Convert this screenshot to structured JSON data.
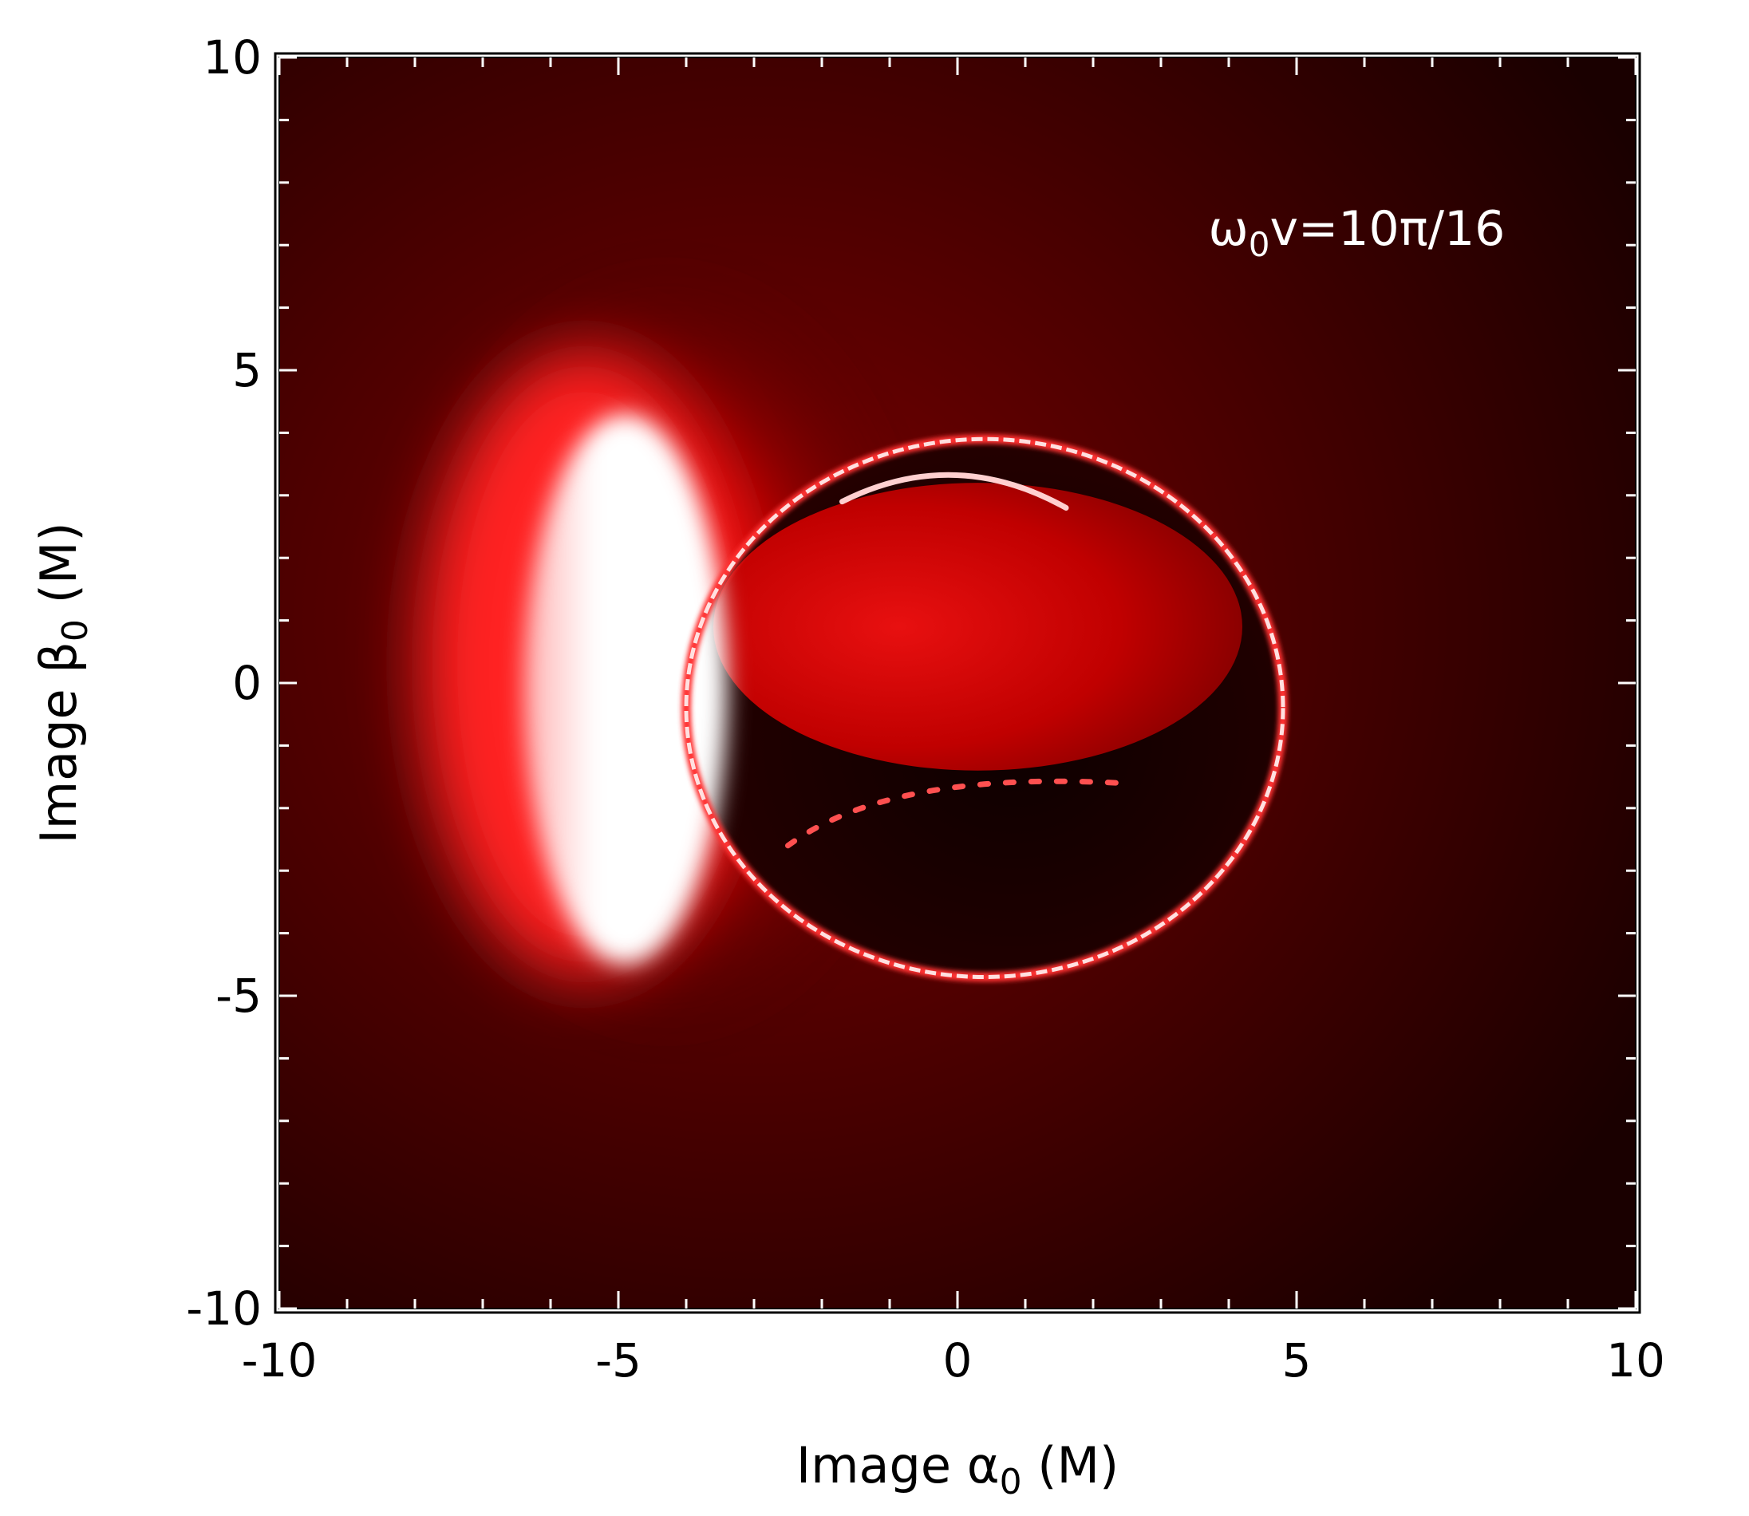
{
  "chart_data": {
    "type": "heatmap",
    "title": "",
    "xlabel": {
      "prefix": "Image ",
      "symbol": "α",
      "subscript": "0",
      "suffix": " (M)"
    },
    "ylabel": {
      "prefix": "Image ",
      "symbol": "β",
      "subscript": "0",
      "suffix": " (M)"
    },
    "xlim": [
      -10,
      10
    ],
    "ylim": [
      -10,
      10
    ],
    "xticks": [
      -10,
      -5,
      0,
      5,
      10
    ],
    "yticks": [
      -10,
      -5,
      0,
      5,
      10
    ],
    "xtick_labels": [
      "-10",
      "-5",
      "0",
      "5",
      "10"
    ],
    "ytick_labels": [
      "-10",
      "-5",
      "0",
      "5",
      "10"
    ],
    "minor_tick_step": 1,
    "grid": false,
    "colormap": [
      "#000000",
      "#ff0000",
      "#ffffff"
    ],
    "annotation": {
      "symbol": "ω",
      "subscript": "0",
      "text": "v=10π/16"
    },
    "features": {
      "photon_ring": {
        "center": [
          0.4,
          -0.4
        ],
        "rx": 4.4,
        "ry": 4.3
      },
      "bright_crescent": {
        "center": [
          -4.9,
          -0.1
        ],
        "rx": 1.5,
        "ry": 4.4
      },
      "inner_bright_lobe": {
        "center": [
          0.3,
          0.9
        ],
        "rx": 3.9,
        "ry": 2.3
      },
      "secondary_arc_upper": {
        "from": [
          -1.7,
          2.9
        ],
        "to": [
          1.6,
          2.8
        ]
      },
      "secondary_arc_lower": {
        "from": [
          -2.5,
          -2.6
        ],
        "to": [
          2.4,
          -1.6
        ]
      }
    }
  }
}
